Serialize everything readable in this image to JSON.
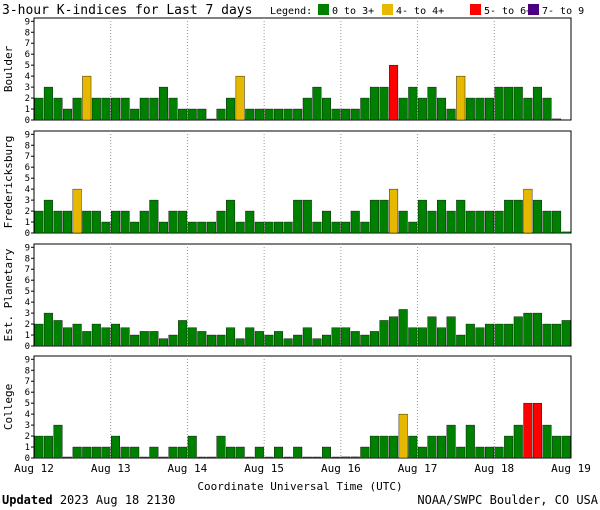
{
  "header": {
    "title": "3-hour K-indices for Last 7 days",
    "legend_label": "Legend:",
    "legend": [
      {
        "label": "0 to 3+",
        "color": "#008000"
      },
      {
        "label": "4- to 4+",
        "color": "#e6b800"
      },
      {
        "label": "5- to 6+",
        "color": "#ff0000"
      },
      {
        "label": "7- to 9",
        "color": "#4b0082"
      }
    ]
  },
  "footer": {
    "updated_label": "Updated",
    "updated_value": "2023 Aug 18 2130",
    "source": "NOAA/SWPC Boulder, CO USA"
  },
  "chart_data": {
    "type": "bar",
    "xlabel": "Coordinate Universal Time (UTC)",
    "x_ticks": [
      "Aug 12",
      "Aug 13",
      "Aug 14",
      "Aug 15",
      "Aug 16",
      "Aug 17",
      "Aug 18",
      "Aug 19"
    ],
    "ylim": [
      0,
      9
    ],
    "y_ticks": [
      "0",
      "1",
      "2",
      "3",
      "4",
      "5",
      "6",
      "7",
      "8",
      "9"
    ],
    "grid": "dotted vertical at day boundaries",
    "bins_per_day": 8,
    "series": [
      {
        "name": "Boulder",
        "values": [
          2,
          3,
          2,
          1,
          2,
          4,
          2,
          2,
          2,
          2,
          1,
          2,
          2,
          3,
          2,
          1,
          1,
          1,
          0,
          1,
          2,
          4,
          1,
          1,
          1,
          1,
          1,
          1,
          2,
          3,
          2,
          1,
          1,
          1,
          2,
          3,
          3,
          5,
          2,
          3,
          2,
          3,
          2,
          1,
          4,
          2,
          2,
          2,
          3,
          3,
          3,
          2,
          3,
          2,
          0.1
        ]
      },
      {
        "name": "Fredericksburg",
        "values": [
          2,
          3,
          2,
          2,
          4,
          2,
          2,
          1,
          2,
          2,
          1,
          2,
          3,
          1,
          2,
          2,
          1,
          1,
          1,
          2,
          3,
          1,
          2,
          1,
          1,
          1,
          1,
          3,
          3,
          1,
          2,
          1,
          1,
          2,
          1,
          3,
          3,
          4,
          2,
          1,
          3,
          2,
          3,
          2,
          3,
          2,
          2,
          2,
          2,
          3,
          3,
          4,
          3,
          2,
          2,
          0.1
        ]
      },
      {
        "name": "Est. Planetary",
        "values": [
          2,
          3,
          2.33,
          1.67,
          2,
          1.33,
          2,
          1.67,
          2,
          1.67,
          1,
          1.33,
          1.33,
          0.67,
          1,
          2.33,
          1.67,
          1.33,
          1,
          1,
          1.67,
          0.67,
          1.67,
          1.33,
          1,
          1.33,
          0.67,
          1,
          1.67,
          0.67,
          1,
          1.67,
          1.67,
          1.33,
          1,
          1.33,
          2.33,
          2.67,
          3.33,
          1.67,
          1.67,
          2.67,
          1.67,
          2.67,
          1,
          2,
          1.67,
          2,
          2,
          2,
          2.67,
          3,
          3,
          2,
          2,
          2.33
        ]
      },
      {
        "name": "College",
        "values": [
          2,
          2,
          3,
          0,
          1,
          1,
          1,
          1,
          2,
          1,
          1,
          0,
          1,
          0,
          1,
          1,
          2,
          0,
          0,
          2,
          1,
          1,
          0,
          1,
          0,
          1,
          0,
          1,
          0,
          0,
          1,
          0,
          0.1,
          0.1,
          1,
          2,
          2,
          2,
          4,
          2,
          1,
          2,
          2,
          3,
          1,
          3,
          1,
          1,
          1,
          2,
          3,
          5,
          5,
          3,
          2,
          2
        ]
      }
    ],
    "panels": [
      "Boulder",
      "Fredericksburg",
      "Est. Planetary",
      "College"
    ]
  }
}
